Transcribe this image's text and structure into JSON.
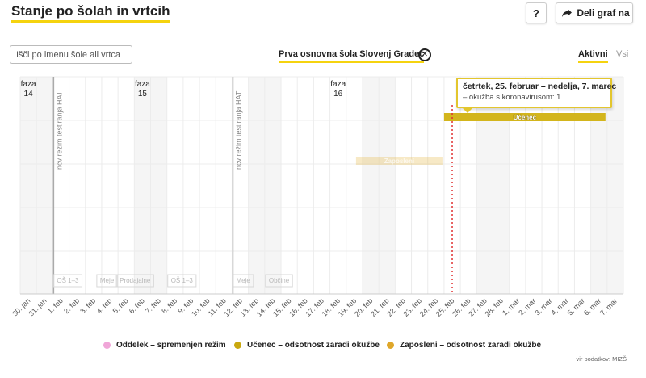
{
  "header": {
    "title": "Stanje po šolah in vrtcih",
    "help_label": "?",
    "share_label": "Deli graf na"
  },
  "controls": {
    "search_placeholder": "Išči po imenu šole ali vrtca",
    "selected_school": "Prva osnovna šola Slovenj Gradec",
    "close_symbol": "✕",
    "filter_active": "Aktivni",
    "filter_all": "Vsi"
  },
  "colors": {
    "accent": "#f5d30f",
    "ucenec": "#d3b51c",
    "zaposleni": "#e3b031",
    "oddelek": "#f0a6d8",
    "tooltip_border": "#e3c62e",
    "today_line": "#e03030"
  },
  "chart_data": {
    "type": "timeline",
    "x_ticks": [
      "30. jan",
      "31. jan",
      "1. feb",
      "2. feb",
      "3. feb",
      "4. feb",
      "5. feb",
      "6. feb",
      "7. feb",
      "8. feb",
      "9. feb",
      "10. feb",
      "11. feb",
      "12. feb",
      "13. feb",
      "14. feb",
      "15. feb",
      "16. feb",
      "17. feb",
      "18. feb",
      "19. feb",
      "20. feb",
      "21. feb",
      "22. feb",
      "23. feb",
      "24. feb",
      "25. feb",
      "26. feb",
      "27. feb",
      "28. feb",
      "1. mar",
      "2. mar",
      "3. mar",
      "4. mar",
      "5. mar",
      "6. mar",
      "7. mar"
    ],
    "phases": [
      {
        "label": "faza",
        "number": "14",
        "date_index": 0
      },
      {
        "label": "faza",
        "number": "15",
        "date_index": 7
      },
      {
        "label": "faza",
        "number": "16",
        "date_index": 19
      }
    ],
    "regime_changes": [
      {
        "label": "ncv režim testiranja HAT",
        "date_index": 2
      },
      {
        "label": "ncv režim testiranja HAT",
        "date_index": 13
      }
    ],
    "grayed_labels": [
      {
        "text": "OŠ 1–3",
        "date_index": 2.05
      },
      {
        "text": "Meje",
        "date_index": 4.7
      },
      {
        "text": "Prodajalne",
        "date_index": 5.9
      },
      {
        "text": "OŠ 1–3",
        "date_index": 9.05
      },
      {
        "text": "Meje",
        "date_index": 13.05
      },
      {
        "text": "Občine",
        "date_index": 15.05
      }
    ],
    "bars": [
      {
        "label": "Učenec",
        "start_index": 26,
        "end_index": 35.9,
        "row": 1,
        "category": "ucenec",
        "faded": false
      },
      {
        "label": "Zaposleni",
        "start_index": 20.6,
        "end_index": 25.9,
        "row": 2,
        "category": "zaposleni",
        "faded": true
      }
    ],
    "today_index": 26.5
  },
  "tooltip": {
    "title": "četrtek, 25. februar – nedelja, 7. marec",
    "body": "– okužba s koronavirusom: 1"
  },
  "legend": [
    {
      "label": "Oddelek – spremenjen režim",
      "color": "#f0a6d8"
    },
    {
      "label": "Učenec – odsotnost zaradi okužbe",
      "color": "#c9a80f"
    },
    {
      "label": "Zaposleni – odsotnost zaradi okužbe",
      "color": "#dfa72a"
    }
  ],
  "source": "vir podatkov: MIZŠ"
}
